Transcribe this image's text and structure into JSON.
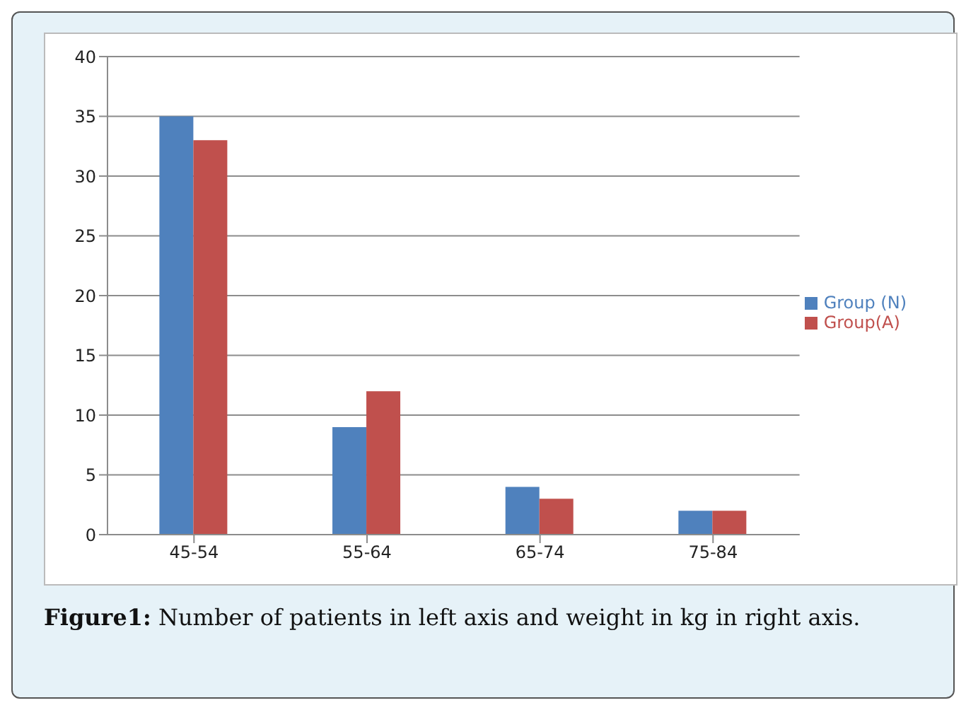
{
  "chart_data": {
    "type": "bar",
    "categories": [
      "45-54",
      "55-64",
      "65-74",
      "75-84"
    ],
    "series": [
      {
        "name": "Group (N)",
        "color": "#4f81bd",
        "values": [
          35,
          9,
          4,
          2
        ]
      },
      {
        "name": "Group(A)",
        "color": "#c0504d",
        "values": [
          33,
          12,
          3,
          2
        ]
      }
    ],
    "ylim": [
      0,
      40
    ],
    "yticks": [
      0,
      5,
      10,
      15,
      20,
      25,
      30,
      35,
      40
    ],
    "grid": "y",
    "legend": "right",
    "annotations": [
      "Figure1: Number of patients in left axis and weight in kg in right axis."
    ]
  }
}
